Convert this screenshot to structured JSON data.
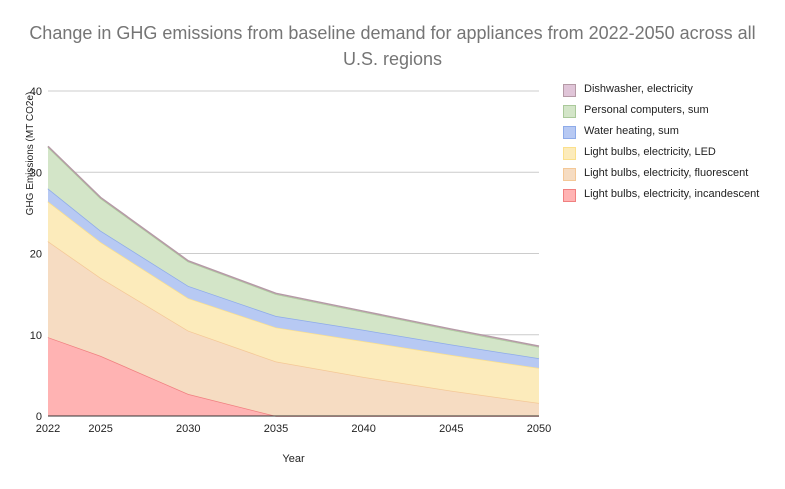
{
  "chart_data": {
    "type": "area",
    "stacked": true,
    "title": "Change in GHG emissions from baseline demand for appliances from 2022-2050 across all U.S. regions",
    "xlabel": "Year",
    "ylabel": "GHG Emissions (MT CO2e)",
    "x": [
      2022,
      2025,
      2030,
      2035,
      2040,
      2045,
      2050
    ],
    "x_tick_labels": [
      "2022",
      "2025",
      "2030",
      "2035",
      "2040",
      "2045",
      "2050"
    ],
    "ylim": [
      0,
      40
    ],
    "y_ticks": [
      0,
      10,
      20,
      30,
      40
    ],
    "grid": true,
    "legend_position": "right",
    "series": [
      {
        "name": "Light bulbs, electricity, incandescent",
        "values": [
          9.7,
          7.4,
          2.7,
          0.0,
          0.0,
          0.0,
          0.0
        ],
        "color": "#ff9e9e",
        "fill": "#ffb3b3",
        "stroke": "#f08080"
      },
      {
        "name": "Light bulbs, electricity, fluorescent",
        "values": [
          11.8,
          9.6,
          7.8,
          6.7,
          4.8,
          3.1,
          1.6
        ],
        "color": "#f6dcc2",
        "fill": "#f6dcc2",
        "stroke": "#f4c897"
      },
      {
        "name": "Light bulbs, electricity, LED",
        "values": [
          4.9,
          4.4,
          4.0,
          4.2,
          4.4,
          4.4,
          4.3
        ],
        "color": "#fcebbb",
        "fill": "#fcebbb",
        "stroke": "#fbe08c"
      },
      {
        "name": "Water heating, sum",
        "values": [
          1.6,
          1.4,
          1.5,
          1.4,
          1.4,
          1.3,
          1.2
        ],
        "color": "#b7c9f3",
        "fill": "#b7c9f3",
        "stroke": "#8eabe9"
      },
      {
        "name": "Personal computers, sum",
        "values": [
          5.1,
          4.0,
          3.0,
          2.7,
          2.2,
          1.8,
          1.4
        ],
        "color": "#d3e5c8",
        "fill": "#d3e5c8",
        "stroke": "#aac99a"
      },
      {
        "name": "Dishwasher, electricity",
        "values": [
          0.1,
          0.1,
          0.1,
          0.1,
          0.1,
          0.1,
          0.1
        ],
        "color": "#e0c5d8",
        "fill": "#e0c5d8",
        "stroke": "#b59aa6"
      }
    ]
  },
  "legend_order": [
    5,
    4,
    3,
    2,
    1,
    0
  ]
}
